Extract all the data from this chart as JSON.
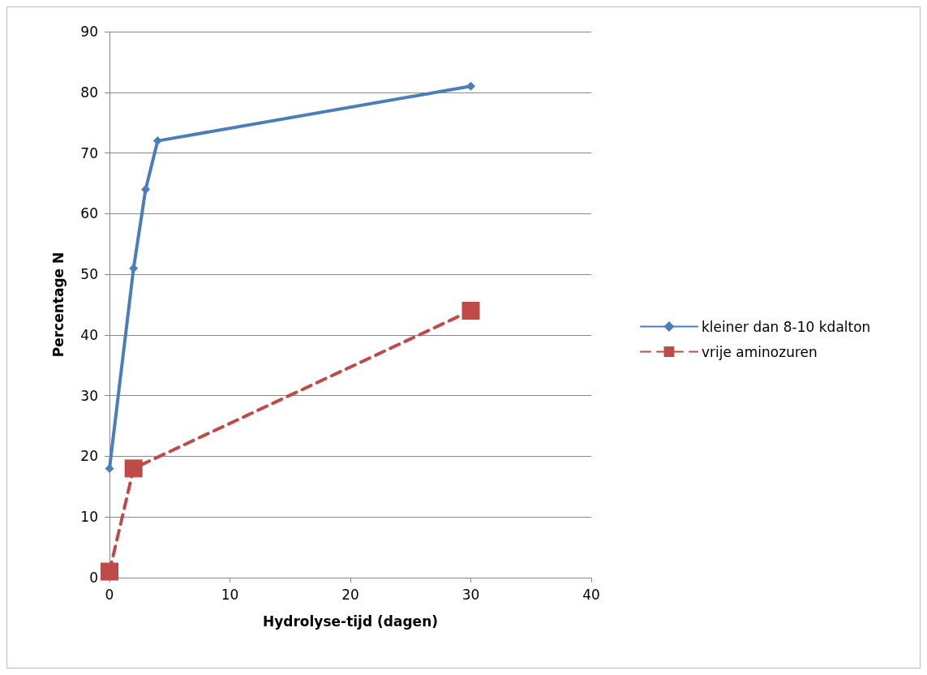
{
  "chart_data": {
    "type": "line",
    "xlabel": "Hydrolyse-tijd (dagen)",
    "ylabel": "Percentage N",
    "xlim": [
      0,
      40
    ],
    "xticks": [
      0,
      10,
      20,
      30,
      40
    ],
    "ylim": [
      0,
      90
    ],
    "yticks": [
      0,
      10,
      20,
      30,
      40,
      50,
      60,
      70,
      80,
      90
    ],
    "grid": "y",
    "legend": "right",
    "series": [
      {
        "name": "kleiner dan 8-10 kdalton",
        "color": "#4a7ebb",
        "marker": "diamond",
        "line_style": "solid",
        "x": [
          0,
          2,
          3,
          4,
          30
        ],
        "values": [
          18,
          51,
          64,
          72,
          81
        ]
      },
      {
        "name": "vrije aminozuren",
        "color": "#be4b48",
        "marker": "square",
        "line_style": "dashed",
        "x": [
          0,
          2,
          30
        ],
        "values": [
          1,
          18,
          44
        ]
      }
    ]
  }
}
